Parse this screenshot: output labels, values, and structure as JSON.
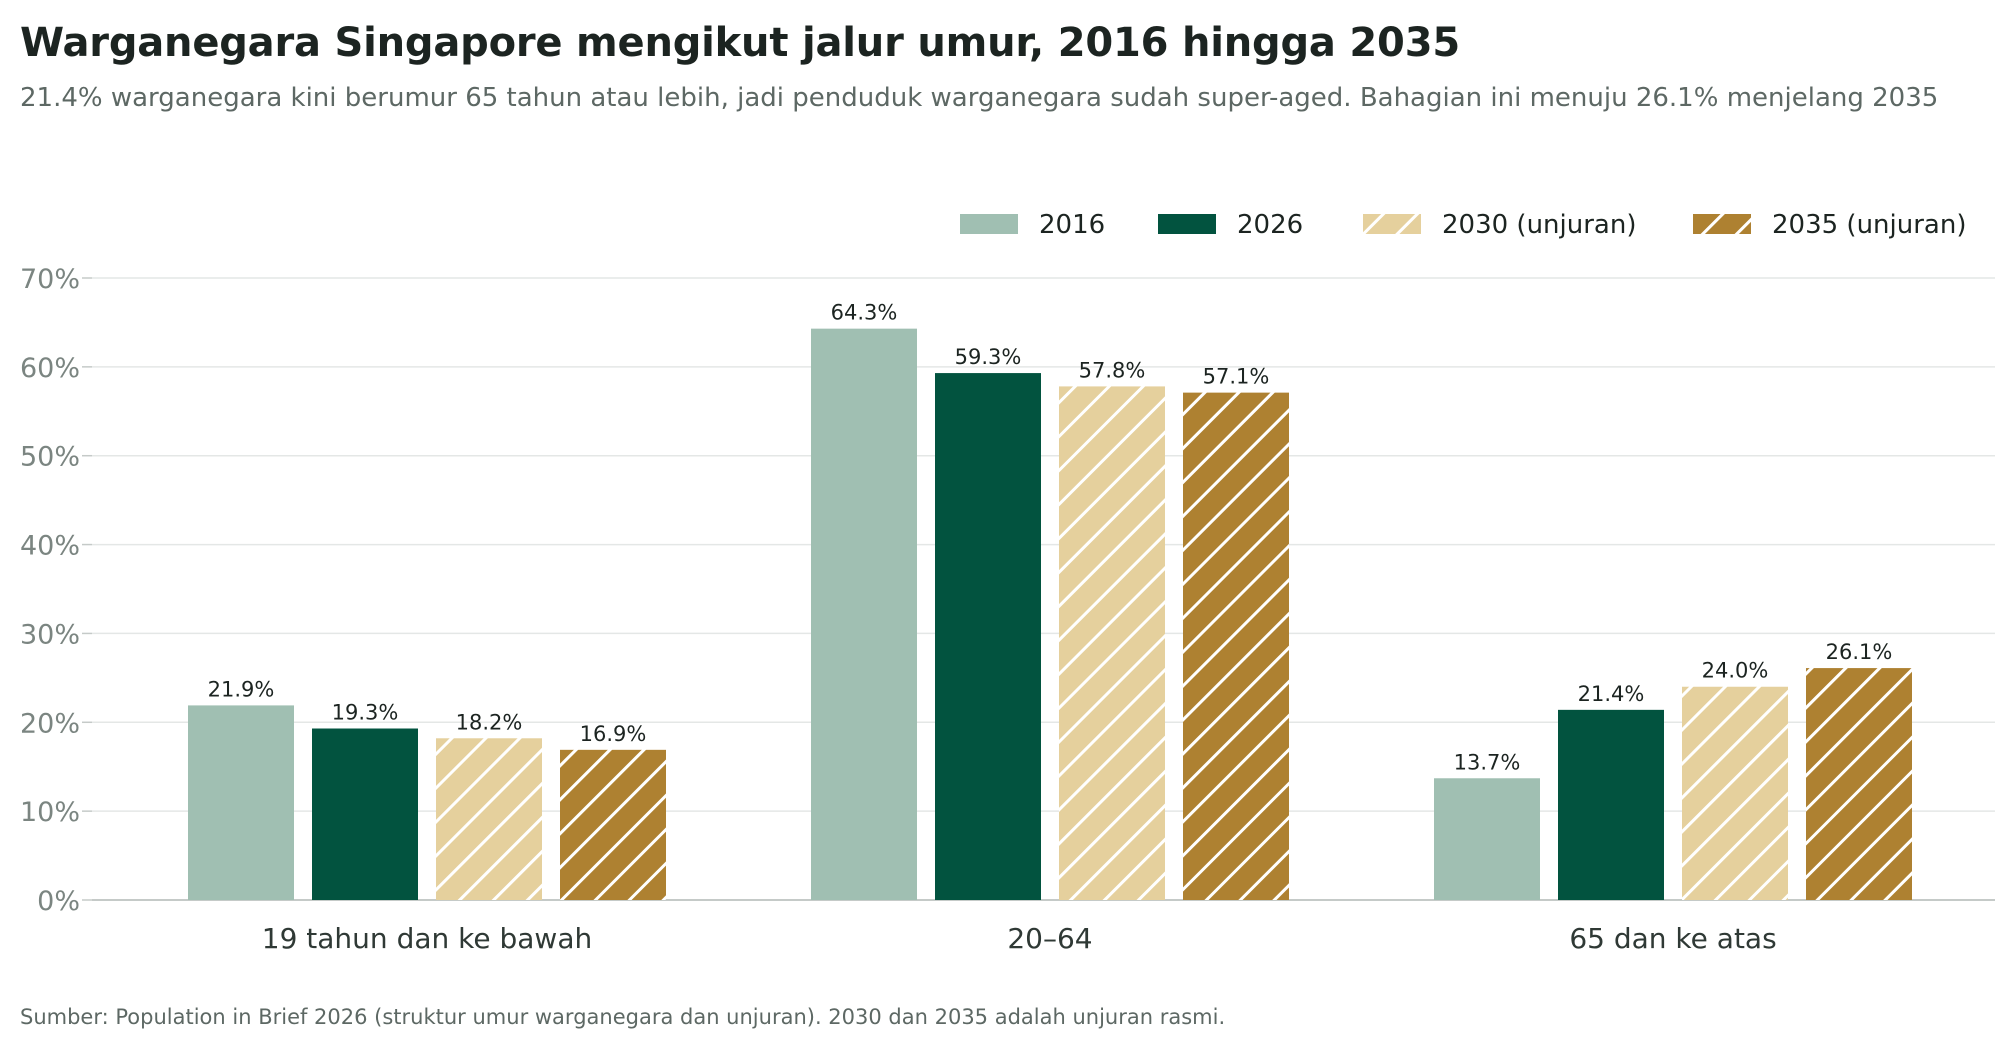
{
  "chart_data": {
    "type": "bar",
    "title": "Warganegara Singapore mengikut jalur umur, 2016 hingga 2035",
    "subtitle": "21.4% warganegara kini berumur 65 tahun atau lebih, jadi penduduk warganegara sudah super-aged. Bahagian ini menuju 26.1% menjelang 2035",
    "source": "Sumber: Population in Brief 2026 (struktur umur warganegara dan unjuran). 2030 dan 2035 adalah unjuran rasmi.",
    "categories": [
      "19 tahun dan ke bawah",
      "20–64",
      "65 dan ke atas"
    ],
    "series": [
      {
        "name": "2016",
        "values": [
          21.9,
          64.3,
          13.7
        ],
        "labels": [
          "21.9%",
          "64.3%",
          "13.7%"
        ],
        "color": "#a0bfb2",
        "hatched": false
      },
      {
        "name": "2026",
        "values": [
          19.3,
          59.3,
          21.4
        ],
        "labels": [
          "19.3%",
          "59.3%",
          "21.4%"
        ],
        "color": "#02533f",
        "hatched": false
      },
      {
        "name": "2030 (unjuran)",
        "values": [
          18.2,
          57.8,
          24.0
        ],
        "labels": [
          "18.2%",
          "57.8%",
          "24.0%"
        ],
        "color": "#e5d09d",
        "hatched": true
      },
      {
        "name": "2035 (unjuran)",
        "values": [
          16.9,
          57.1,
          26.1
        ],
        "labels": [
          "16.9%",
          "57.1%",
          "26.1%"
        ],
        "color": "#ae8131",
        "hatched": true
      }
    ],
    "y_ticks": [
      0,
      10,
      20,
      30,
      40,
      50,
      60,
      70
    ],
    "y_tick_labels": [
      "0%",
      "10%",
      "20%",
      "30%",
      "40%",
      "50%",
      "60%",
      "70%"
    ],
    "ylim": [
      0,
      70
    ],
    "grid": true,
    "legend_position": "top-right",
    "colors": {
      "grid": "#e4e7e6",
      "axis": "#c5cac8",
      "hatch": "#ffffff"
    }
  }
}
